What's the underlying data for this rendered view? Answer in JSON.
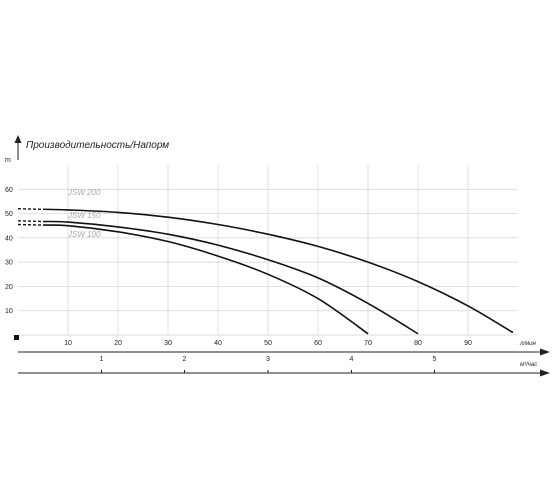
{
  "chart_data": {
    "type": "line",
    "title": "Производительность/Напорм",
    "y_unit": "m",
    "x_unit": "л/мин",
    "x2_unit": "м³/час",
    "ylim": [
      0,
      70
    ],
    "xlim": [
      0,
      100
    ],
    "y_ticks": [
      10,
      20,
      30,
      40,
      50,
      60
    ],
    "x_ticks": [
      10,
      20,
      30,
      40,
      50,
      60,
      70,
      80,
      90
    ],
    "x2_ticks": [
      {
        "label": "1",
        "lpm": 16.7
      },
      {
        "label": "2",
        "lpm": 33.3
      },
      {
        "label": "3",
        "lpm": 50
      },
      {
        "label": "4",
        "lpm": 66.7
      },
      {
        "label": "5",
        "lpm": 83.3
      }
    ],
    "grid": true,
    "series": [
      {
        "name": "JSW 200",
        "x": [
          0,
          10,
          20,
          30,
          40,
          50,
          60,
          70,
          80,
          90,
          99
        ],
        "y": [
          52,
          51.5,
          50.5,
          48.5,
          45.5,
          41.5,
          36.5,
          30,
          22,
          12,
          1
        ],
        "dashed_until": 5
      },
      {
        "name": "JSW 150",
        "x": [
          0,
          10,
          20,
          30,
          40,
          50,
          60,
          70,
          80
        ],
        "y": [
          47,
          46.5,
          44.5,
          41.5,
          37,
          31,
          23.5,
          13,
          0.5
        ],
        "dashed_until": 5
      },
      {
        "name": "JSW 100",
        "x": [
          0,
          10,
          20,
          30,
          40,
          50,
          60,
          70
        ],
        "y": [
          45.5,
          45,
          42.5,
          38.5,
          32.5,
          25,
          15,
          0.5
        ],
        "dashed_until": 5
      }
    ]
  }
}
